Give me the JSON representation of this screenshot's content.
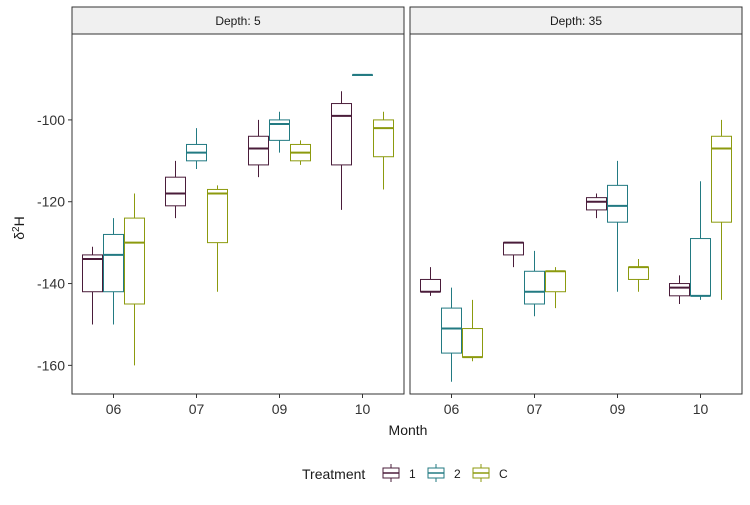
{
  "chart_data": {
    "type": "boxplot",
    "y_label_main": "δ",
    "y_label_sup": "2",
    "y_label_tail": "H",
    "x_label": "Month",
    "categories": [
      "06",
      "07",
      "09",
      "10"
    ],
    "ylim": [
      -167,
      -79
    ],
    "yticks": [
      -160,
      -140,
      -120,
      -100
    ],
    "grid": false,
    "legend_position": "bottom",
    "legend": {
      "title": "Treatment",
      "items": [
        {
          "label": "1",
          "color": "#4a1c3a"
        },
        {
          "label": "2",
          "color": "#227a82"
        },
        {
          "label": "C",
          "color": "#8c9a0e"
        }
      ]
    },
    "panels": [
      {
        "title": "Depth: 5",
        "boxes": [
          {
            "month": "06",
            "treatment": "1",
            "whisker_low": -150,
            "q1": -142,
            "median": -134,
            "q3": -133,
            "whisker_high": -131
          },
          {
            "month": "06",
            "treatment": "2",
            "whisker_low": -150,
            "q1": -142,
            "median": -133,
            "q3": -128,
            "whisker_high": -124
          },
          {
            "month": "06",
            "treatment": "C",
            "whisker_low": -160,
            "q1": -145,
            "median": -130,
            "q3": -124,
            "whisker_high": -118
          },
          {
            "month": "07",
            "treatment": "1",
            "whisker_low": -124,
            "q1": -121,
            "median": -118,
            "q3": -114,
            "whisker_high": -110
          },
          {
            "month": "07",
            "treatment": "2",
            "whisker_low": -112,
            "q1": -110,
            "median": -108,
            "q3": -106,
            "whisker_high": -102
          },
          {
            "month": "07",
            "treatment": "C",
            "whisker_low": -142,
            "q1": -130,
            "median": -118,
            "q3": -117,
            "whisker_high": -116
          },
          {
            "month": "09",
            "treatment": "1",
            "whisker_low": -114,
            "q1": -111,
            "median": -107,
            "q3": -104,
            "whisker_high": -100
          },
          {
            "month": "09",
            "treatment": "2",
            "whisker_low": -108,
            "q1": -105,
            "median": -101,
            "q3": -100,
            "whisker_high": -98
          },
          {
            "month": "09",
            "treatment": "C",
            "whisker_low": -111,
            "q1": -110,
            "median": -108,
            "q3": -106,
            "whisker_high": -105
          },
          {
            "month": "10",
            "treatment": "1",
            "whisker_low": -122,
            "q1": -111,
            "median": -99,
            "q3": -96,
            "whisker_high": -93
          },
          {
            "month": "10",
            "treatment": "2",
            "whisker_low": -89,
            "q1": -89,
            "median": -89,
            "q3": -89,
            "whisker_high": -89
          },
          {
            "month": "10",
            "treatment": "C",
            "whisker_low": -117,
            "q1": -109,
            "median": -102,
            "q3": -100,
            "whisker_high": -98
          }
        ]
      },
      {
        "title": "Depth: 35",
        "boxes": [
          {
            "month": "06",
            "treatment": "1",
            "whisker_low": -143,
            "q1": -142,
            "median": -142,
            "q3": -139,
            "whisker_high": -136
          },
          {
            "month": "06",
            "treatment": "2",
            "whisker_low": -164,
            "q1": -157,
            "median": -151,
            "q3": -146,
            "whisker_high": -141
          },
          {
            "month": "06",
            "treatment": "C",
            "whisker_low": -159,
            "q1": -158,
            "median": -158,
            "q3": -151,
            "whisker_high": -144
          },
          {
            "month": "07",
            "treatment": "1",
            "whisker_low": -136,
            "q1": -133,
            "median": -130,
            "q3": -130,
            "whisker_high": -130
          },
          {
            "month": "07",
            "treatment": "2",
            "whisker_low": -148,
            "q1": -145,
            "median": -142,
            "q3": -137,
            "whisker_high": -132
          },
          {
            "month": "07",
            "treatment": "C",
            "whisker_low": -146,
            "q1": -142,
            "median": -137,
            "q3": -137,
            "whisker_high": -136
          },
          {
            "month": "09",
            "treatment": "1",
            "whisker_low": -124,
            "q1": -122,
            "median": -120,
            "q3": -119,
            "whisker_high": -118
          },
          {
            "month": "09",
            "treatment": "2",
            "whisker_low": -142,
            "q1": -125,
            "median": -121,
            "q3": -116,
            "whisker_high": -110
          },
          {
            "month": "09",
            "treatment": "C",
            "whisker_low": -142,
            "q1": -139,
            "median": -136,
            "q3": -136,
            "whisker_high": -134
          },
          {
            "month": "10",
            "treatment": "1",
            "whisker_low": -145,
            "q1": -143,
            "median": -141,
            "q3": -140,
            "whisker_high": -138
          },
          {
            "month": "10",
            "treatment": "2",
            "whisker_low": -144,
            "q1": -143,
            "median": -143,
            "q3": -129,
            "whisker_high": -115
          },
          {
            "month": "10",
            "treatment": "C",
            "whisker_low": -144,
            "q1": -125,
            "median": -107,
            "q3": -104,
            "whisker_high": -100
          }
        ]
      }
    ]
  }
}
